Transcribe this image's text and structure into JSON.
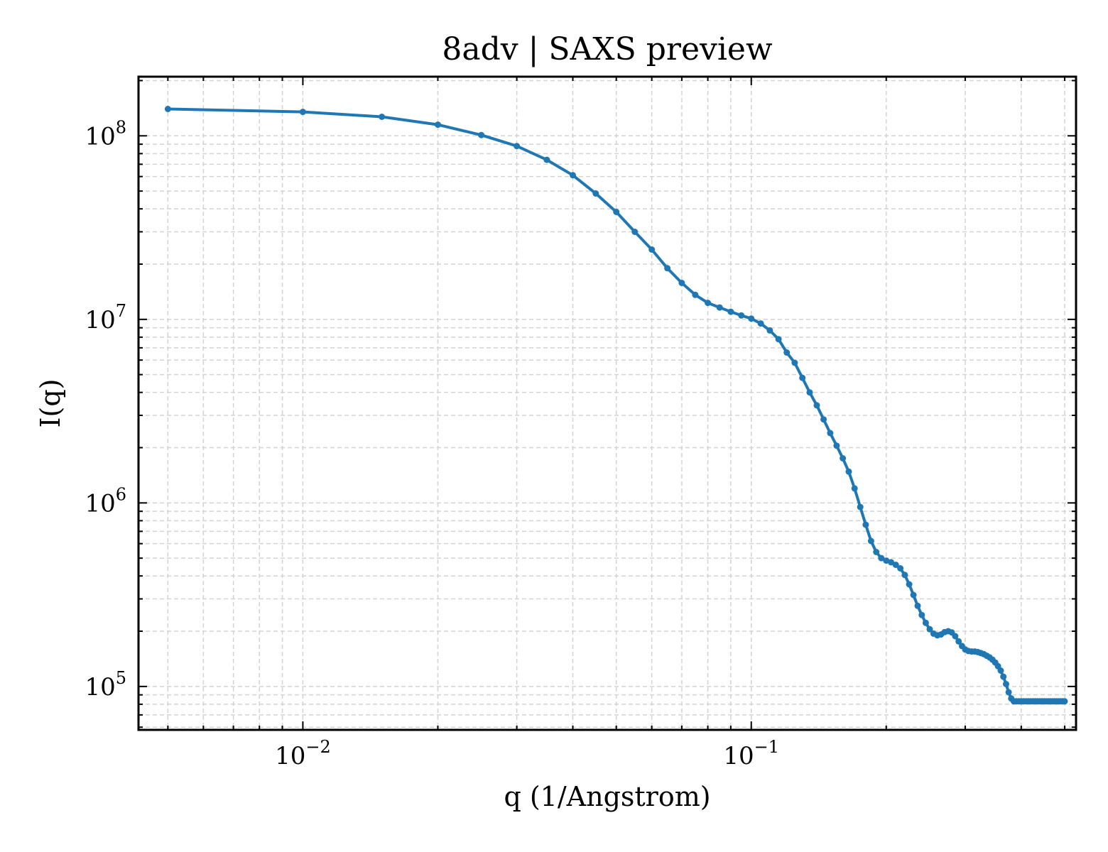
{
  "chart_data": {
    "type": "line",
    "title": "8adv | SAXS preview",
    "xlabel": "q (1/Angstrom)",
    "ylabel": "I(q)",
    "xscale": "log",
    "yscale": "log",
    "xlim": [
      0.0043,
      0.53
    ],
    "ylim": [
      58000,
      210000000
    ],
    "grid": true,
    "legend": "none",
    "x_ticks": [
      {
        "base": "10",
        "exp": "−2",
        "value": 0.01
      },
      {
        "base": "10",
        "exp": "−1",
        "value": 0.1
      }
    ],
    "y_ticks": [
      {
        "base": "10",
        "exp": "5",
        "value": 100000
      },
      {
        "base": "10",
        "exp": "6",
        "value": 1000000
      },
      {
        "base": "10",
        "exp": "7",
        "value": 10000000
      },
      {
        "base": "10",
        "exp": "8",
        "value": 100000000
      }
    ],
    "colors": {
      "line": "#1f77b4",
      "grid": "#d3d3d3",
      "axes": "#000000"
    },
    "series": [
      {
        "x": [
          0.005,
          0.01,
          0.015,
          0.02,
          0.025,
          0.03,
          0.035,
          0.04,
          0.045,
          0.05,
          0.055,
          0.06,
          0.065,
          0.07,
          0.075,
          0.08,
          0.085,
          0.09,
          0.095,
          0.1,
          0.105,
          0.11,
          0.115,
          0.12,
          0.125,
          0.13,
          0.135,
          0.14,
          0.145,
          0.15,
          0.155,
          0.16,
          0.165,
          0.17,
          0.175,
          0.18,
          0.185,
          0.19,
          0.195,
          0.2,
          0.205,
          0.21,
          0.215,
          0.22,
          0.225,
          0.23,
          0.235,
          0.24,
          0.245,
          0.25,
          0.255,
          0.26,
          0.265,
          0.27,
          0.275,
          0.28,
          0.285,
          0.29,
          0.295,
          0.3,
          0.305,
          0.31,
          0.315,
          0.32,
          0.325,
          0.33,
          0.335,
          0.34,
          0.345,
          0.35,
          0.355,
          0.36,
          0.365,
          0.37,
          0.375,
          0.38,
          0.385,
          0.39,
          0.395,
          0.4,
          0.405,
          0.41,
          0.415,
          0.42,
          0.425,
          0.43,
          0.435,
          0.44,
          0.445,
          0.45,
          0.455,
          0.46,
          0.465,
          0.47,
          0.475,
          0.48,
          0.485,
          0.49,
          0.495,
          0.5
        ],
        "y": [
          140000000,
          135000000,
          127000000,
          115000000,
          101000000,
          88000000,
          74000000,
          61000000,
          48500000,
          38500000,
          30000000,
          24000000,
          19000000,
          15800000,
          13600000,
          12300000,
          11600000,
          11000000,
          10500000,
          10100000,
          9500000,
          8700000,
          7800000,
          6600000,
          5800000,
          4800000,
          4000000,
          3400000,
          2850000,
          2400000,
          2050000,
          1750000,
          1480000,
          1200000,
          950000,
          760000,
          620000,
          540000,
          500000,
          485000,
          475000,
          460000,
          440000,
          405000,
          360000,
          315000,
          275000,
          245000,
          222000,
          205000,
          194000,
          190000,
          192000,
          198000,
          200000,
          197000,
          188000,
          176000,
          166000,
          159000,
          156000,
          155000,
          155000,
          154000,
          152000,
          150000,
          147000,
          144000,
          140000,
          135000,
          129000,
          122000,
          113000,
          103000,
          93000,
          86000,
          83000,
          83000,
          83000,
          83000,
          83000,
          83000,
          83000,
          83000,
          83000,
          83000,
          83000,
          83000,
          83000,
          83000,
          83000,
          83000,
          83000,
          83000,
          83000,
          83000,
          83000,
          83000,
          83000,
          83000
        ]
      }
    ]
  }
}
